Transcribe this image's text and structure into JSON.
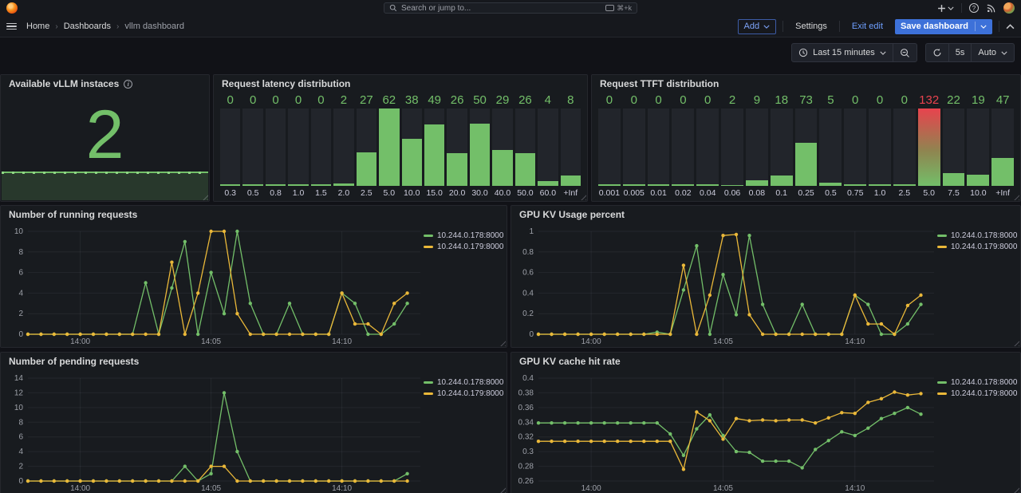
{
  "header": {
    "search": {
      "placeholder": "Search or jump to...",
      "shortcut": "⌘+k"
    },
    "breadcrumb": {
      "items": [
        "Home",
        "Dashboards",
        "vllm dashboard"
      ],
      "separator": "›"
    },
    "toolbar": {
      "add": "Add",
      "settings": "Settings",
      "exit_edit": "Exit edit",
      "save": "Save dashboard"
    }
  },
  "timebar": {
    "range": "Last 15 minutes",
    "interval": "5s",
    "auto": "Auto"
  },
  "colors": {
    "green": "#73BF69",
    "yellow": "#EAB839",
    "red": "#E8434E",
    "blue": "#3D71D9",
    "blue_text": "#6E9FFF",
    "axis_text": "#9DA0A8",
    "grid": "rgba(204,204,220,0.07)"
  },
  "chart_data": {
    "shared_x": {
      "description": "time axis in minutes after 13:58, ticks shown on axis",
      "domain": [
        0,
        15
      ],
      "points_minutes": [
        0,
        0.5,
        1,
        1.5,
        2,
        2.5,
        3,
        3.5,
        4,
        4.5,
        5,
        5.5,
        6,
        6.5,
        7,
        7.5,
        8,
        8.5,
        9,
        9.5,
        10,
        10.5,
        11,
        11.5,
        12,
        12.5,
        13,
        13.5,
        14,
        14.5
      ],
      "ticks": [
        {
          "label": "14:00",
          "minute": 2
        },
        {
          "label": "14:05",
          "minute": 7
        },
        {
          "label": "14:10",
          "minute": 12
        }
      ]
    },
    "stat": {
      "type": "stat",
      "title": "Available vLLM instaces",
      "value": "2",
      "sparkline_constant": 2
    },
    "latency": {
      "type": "bar",
      "title": "Request latency distribution",
      "categories": [
        "0.3",
        "0.5",
        "0.8",
        "1.0",
        "1.5",
        "2.0",
        "2.5",
        "5.0",
        "10.0",
        "15.0",
        "20.0",
        "30.0",
        "40.0",
        "50.0",
        "60.0",
        "+Inf"
      ],
      "values": [
        0,
        0,
        0,
        0,
        0,
        2,
        27,
        62,
        38,
        49,
        26,
        50,
        29,
        26,
        4,
        8
      ],
      "gauge_max": 62,
      "highlight_index": -1
    },
    "ttft": {
      "type": "bar",
      "title": "Request TTFT distribution",
      "categories": [
        "0.001",
        "0.005",
        "0.01",
        "0.02",
        "0.04",
        "0.06",
        "0.08",
        "0.1",
        "0.25",
        "0.5",
        "0.75",
        "1.0",
        "2.5",
        "5.0",
        "7.5",
        "10.0",
        "+Inf"
      ],
      "values": [
        0,
        0,
        0,
        0,
        0,
        2,
        9,
        18,
        73,
        5,
        0,
        0,
        0,
        132,
        22,
        19,
        47
      ],
      "gauge_max": 132,
      "highlight_index": 13
    },
    "running": {
      "type": "line",
      "title": "Number of running requests",
      "ylim": [
        0,
        10
      ],
      "yticks": [
        0,
        2,
        4,
        6,
        8,
        10
      ],
      "series": [
        {
          "name": "10.244.0.178:8000",
          "color": "green",
          "values": [
            0,
            0,
            0,
            0,
            0,
            0,
            0,
            0,
            0,
            5,
            0,
            4.5,
            9,
            0,
            6,
            2,
            10,
            3,
            0,
            0,
            3,
            0,
            0,
            0,
            4,
            3,
            0,
            0,
            1,
            3
          ]
        },
        {
          "name": "10.244.0.179:8000",
          "color": "yellow",
          "values": [
            0,
            0,
            0,
            0,
            0,
            0,
            0,
            0,
            0,
            0,
            0,
            7,
            0,
            4,
            10,
            10,
            2,
            0,
            0,
            0,
            0,
            0,
            0,
            0,
            4,
            1,
            1,
            0,
            3,
            4
          ]
        }
      ]
    },
    "kv_usage": {
      "type": "line",
      "title": "GPU KV Usage percent",
      "ylim": [
        0,
        1
      ],
      "yticks": [
        0,
        0.2,
        0.4,
        0.6,
        0.8,
        1
      ],
      "series": [
        {
          "name": "10.244.0.178:8000",
          "color": "green",
          "values": [
            0,
            0,
            0,
            0,
            0,
            0,
            0,
            0,
            0,
            0.02,
            0,
            0.43,
            0.86,
            0,
            0.58,
            0.19,
            0.96,
            0.29,
            0,
            0,
            0.29,
            0,
            0,
            0,
            0.38,
            0.29,
            0,
            0,
            0.1,
            0.29
          ]
        },
        {
          "name": "10.244.0.179:8000",
          "color": "yellow",
          "values": [
            0,
            0,
            0,
            0,
            0,
            0,
            0,
            0,
            0,
            0,
            0,
            0.67,
            0,
            0.38,
            0.96,
            0.97,
            0.19,
            0,
            0,
            0,
            0,
            0,
            0,
            0,
            0.38,
            0.1,
            0.1,
            0,
            0.28,
            0.38
          ]
        }
      ]
    },
    "pending": {
      "type": "line",
      "title": "Number of pending requests",
      "ylim": [
        0,
        14
      ],
      "yticks": [
        0,
        2,
        4,
        6,
        8,
        10,
        12,
        14
      ],
      "series": [
        {
          "name": "10.244.0.178:8000",
          "color": "green",
          "values": [
            0,
            0,
            0,
            0,
            0,
            0,
            0,
            0,
            0,
            0,
            0,
            0,
            2,
            0,
            1,
            12,
            4,
            0,
            0,
            0,
            0,
            0,
            0,
            0,
            0,
            0,
            0,
            0,
            0,
            1
          ]
        },
        {
          "name": "10.244.0.179:8000",
          "color": "yellow",
          "values": [
            0,
            0,
            0,
            0,
            0,
            0,
            0,
            0,
            0,
            0,
            0,
            0,
            0,
            0,
            2,
            2,
            0,
            0,
            0,
            0,
            0,
            0,
            0,
            0,
            0,
            0,
            0,
            0,
            0,
            0
          ]
        }
      ]
    },
    "hit_rate": {
      "type": "line",
      "title": "GPU KV cache hit rate",
      "ylim": [
        0.26,
        0.4
      ],
      "yticks": [
        0.26,
        0.28,
        0.3,
        0.32,
        0.34,
        0.36,
        0.38,
        0.4
      ],
      "series": [
        {
          "name": "10.244.0.178:8000",
          "color": "green",
          "values": [
            0.339,
            0.339,
            0.339,
            0.339,
            0.339,
            0.339,
            0.339,
            0.339,
            0.339,
            0.339,
            0.324,
            0.295,
            0.331,
            0.35,
            0.322,
            0.3,
            0.299,
            0.287,
            0.287,
            0.287,
            0.278,
            0.303,
            0.315,
            0.327,
            0.322,
            0.332,
            0.345,
            0.352,
            0.36,
            0.351
          ]
        },
        {
          "name": "10.244.0.179:8000",
          "color": "yellow",
          "values": [
            0.314,
            0.314,
            0.314,
            0.314,
            0.314,
            0.314,
            0.314,
            0.314,
            0.314,
            0.314,
            0.314,
            0.276,
            0.354,
            0.342,
            0.317,
            0.345,
            0.342,
            0.343,
            0.342,
            0.343,
            0.343,
            0.339,
            0.346,
            0.353,
            0.352,
            0.367,
            0.372,
            0.381,
            0.377,
            0.379
          ]
        }
      ]
    }
  }
}
